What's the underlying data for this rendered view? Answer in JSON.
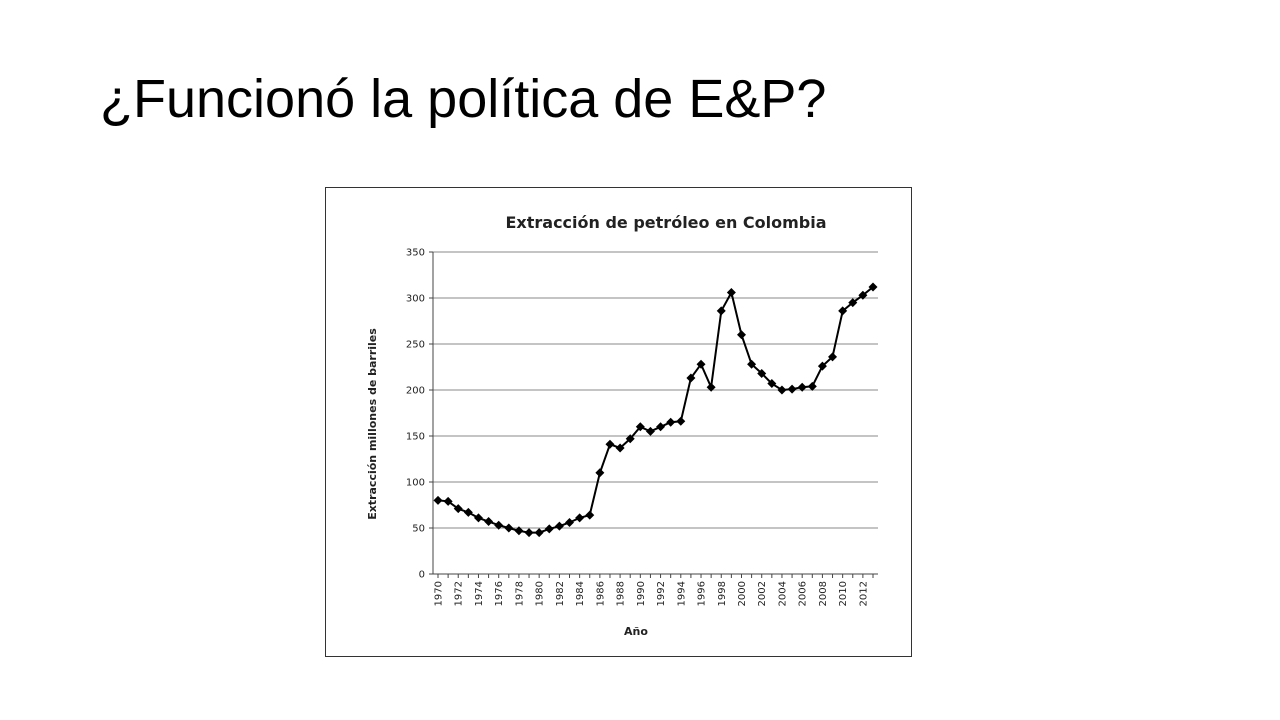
{
  "slide": {
    "title": "¿Funcionó la política de E&P?"
  },
  "chart_data": {
    "type": "line",
    "title": "Extracción de petróleo en Colombia",
    "xlabel": "Año",
    "ylabel": "Extracción millones de barriles",
    "ylim": [
      0,
      350
    ],
    "yticks": [
      0,
      50,
      100,
      150,
      200,
      250,
      300,
      350
    ],
    "xticks": [
      "1970",
      "1972",
      "1974",
      "1976",
      "1978",
      "1980",
      "1982",
      "1984",
      "1986",
      "1988",
      "1990",
      "1992",
      "1994",
      "1996",
      "1998",
      "2000",
      "2002",
      "2004",
      "2006",
      "2008",
      "2010",
      "2012"
    ],
    "grid": "horizontal",
    "marker": "diamond",
    "series_color": "#000000",
    "x": [
      1970,
      1971,
      1972,
      1973,
      1974,
      1975,
      1976,
      1977,
      1978,
      1979,
      1980,
      1981,
      1982,
      1983,
      1984,
      1985,
      1986,
      1987,
      1988,
      1989,
      1990,
      1991,
      1992,
      1993,
      1994,
      1995,
      1996,
      1997,
      1998,
      1999,
      2000,
      2001,
      2002,
      2003,
      2004,
      2005,
      2006,
      2007,
      2008,
      2009,
      2010,
      2011,
      2012,
      2013
    ],
    "values": [
      80,
      79,
      71,
      67,
      61,
      57,
      53,
      50,
      47,
      45,
      45,
      49,
      52,
      56,
      61,
      64,
      110,
      141,
      137,
      147,
      160,
      155,
      160,
      165,
      166,
      213,
      228,
      203,
      286,
      306,
      260,
      228,
      218,
      207,
      200,
      201,
      203,
      204,
      226,
      236,
      286,
      295,
      303,
      312
    ]
  }
}
